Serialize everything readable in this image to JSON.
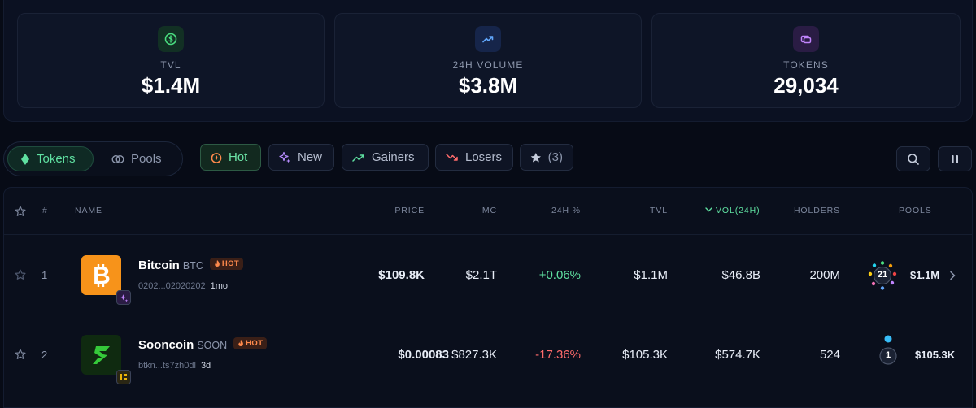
{
  "stats": [
    {
      "label": "TVL",
      "value": "$1.4M",
      "icon": "dollar-circle-icon",
      "color": "#4ade80"
    },
    {
      "label": "24H VOLUME",
      "value": "$3.8M",
      "icon": "trending-up-icon",
      "color": "#60a5fa"
    },
    {
      "label": "TOKENS",
      "value": "29,034",
      "icon": "coins-icon",
      "color": "#c084fc"
    }
  ],
  "tabs": {
    "tokens": "Tokens",
    "pools": "Pools"
  },
  "filters": {
    "hot": "Hot",
    "new": "New",
    "gainers": "Gainers",
    "losers": "Losers",
    "favorites": "(3)"
  },
  "columns": {
    "rank": "#",
    "name": "NAME",
    "price": "PRICE",
    "mc": "MC",
    "change": "24H %",
    "tvl": "TVL",
    "vol": "VOL(24H)",
    "holders": "HOLDERS",
    "pools": "POOLS"
  },
  "rows": [
    {
      "rank": "1",
      "name": "Bitcoin",
      "symbol": "BTC",
      "badge": "HOT",
      "address": "0202...02020202",
      "age": "1mo",
      "price": "$109.8K",
      "mc": "$2.1T",
      "change": "+0.06%",
      "tvl": "$1.1M",
      "vol": "$46.8B",
      "holders": "200M",
      "pool_count": "21",
      "pool_tvl": "$1.1M"
    },
    {
      "rank": "2",
      "name": "Sooncoin",
      "symbol": "SOON",
      "badge": "HOT",
      "address": "btkn...ts7zh0dl",
      "age": "3d",
      "price": "$0.00083",
      "mc": "$827.3K",
      "change": "-17.36%",
      "tvl": "$105.3K",
      "vol": "$574.7K",
      "holders": "524",
      "pool_count": "1",
      "pool_tvl": "$105.3K"
    }
  ],
  "colors": {
    "accent": "#5fe0a1",
    "negative": "#ff6b6b",
    "hot": "#ff8a4c",
    "bitcoin": "#f7931a"
  }
}
